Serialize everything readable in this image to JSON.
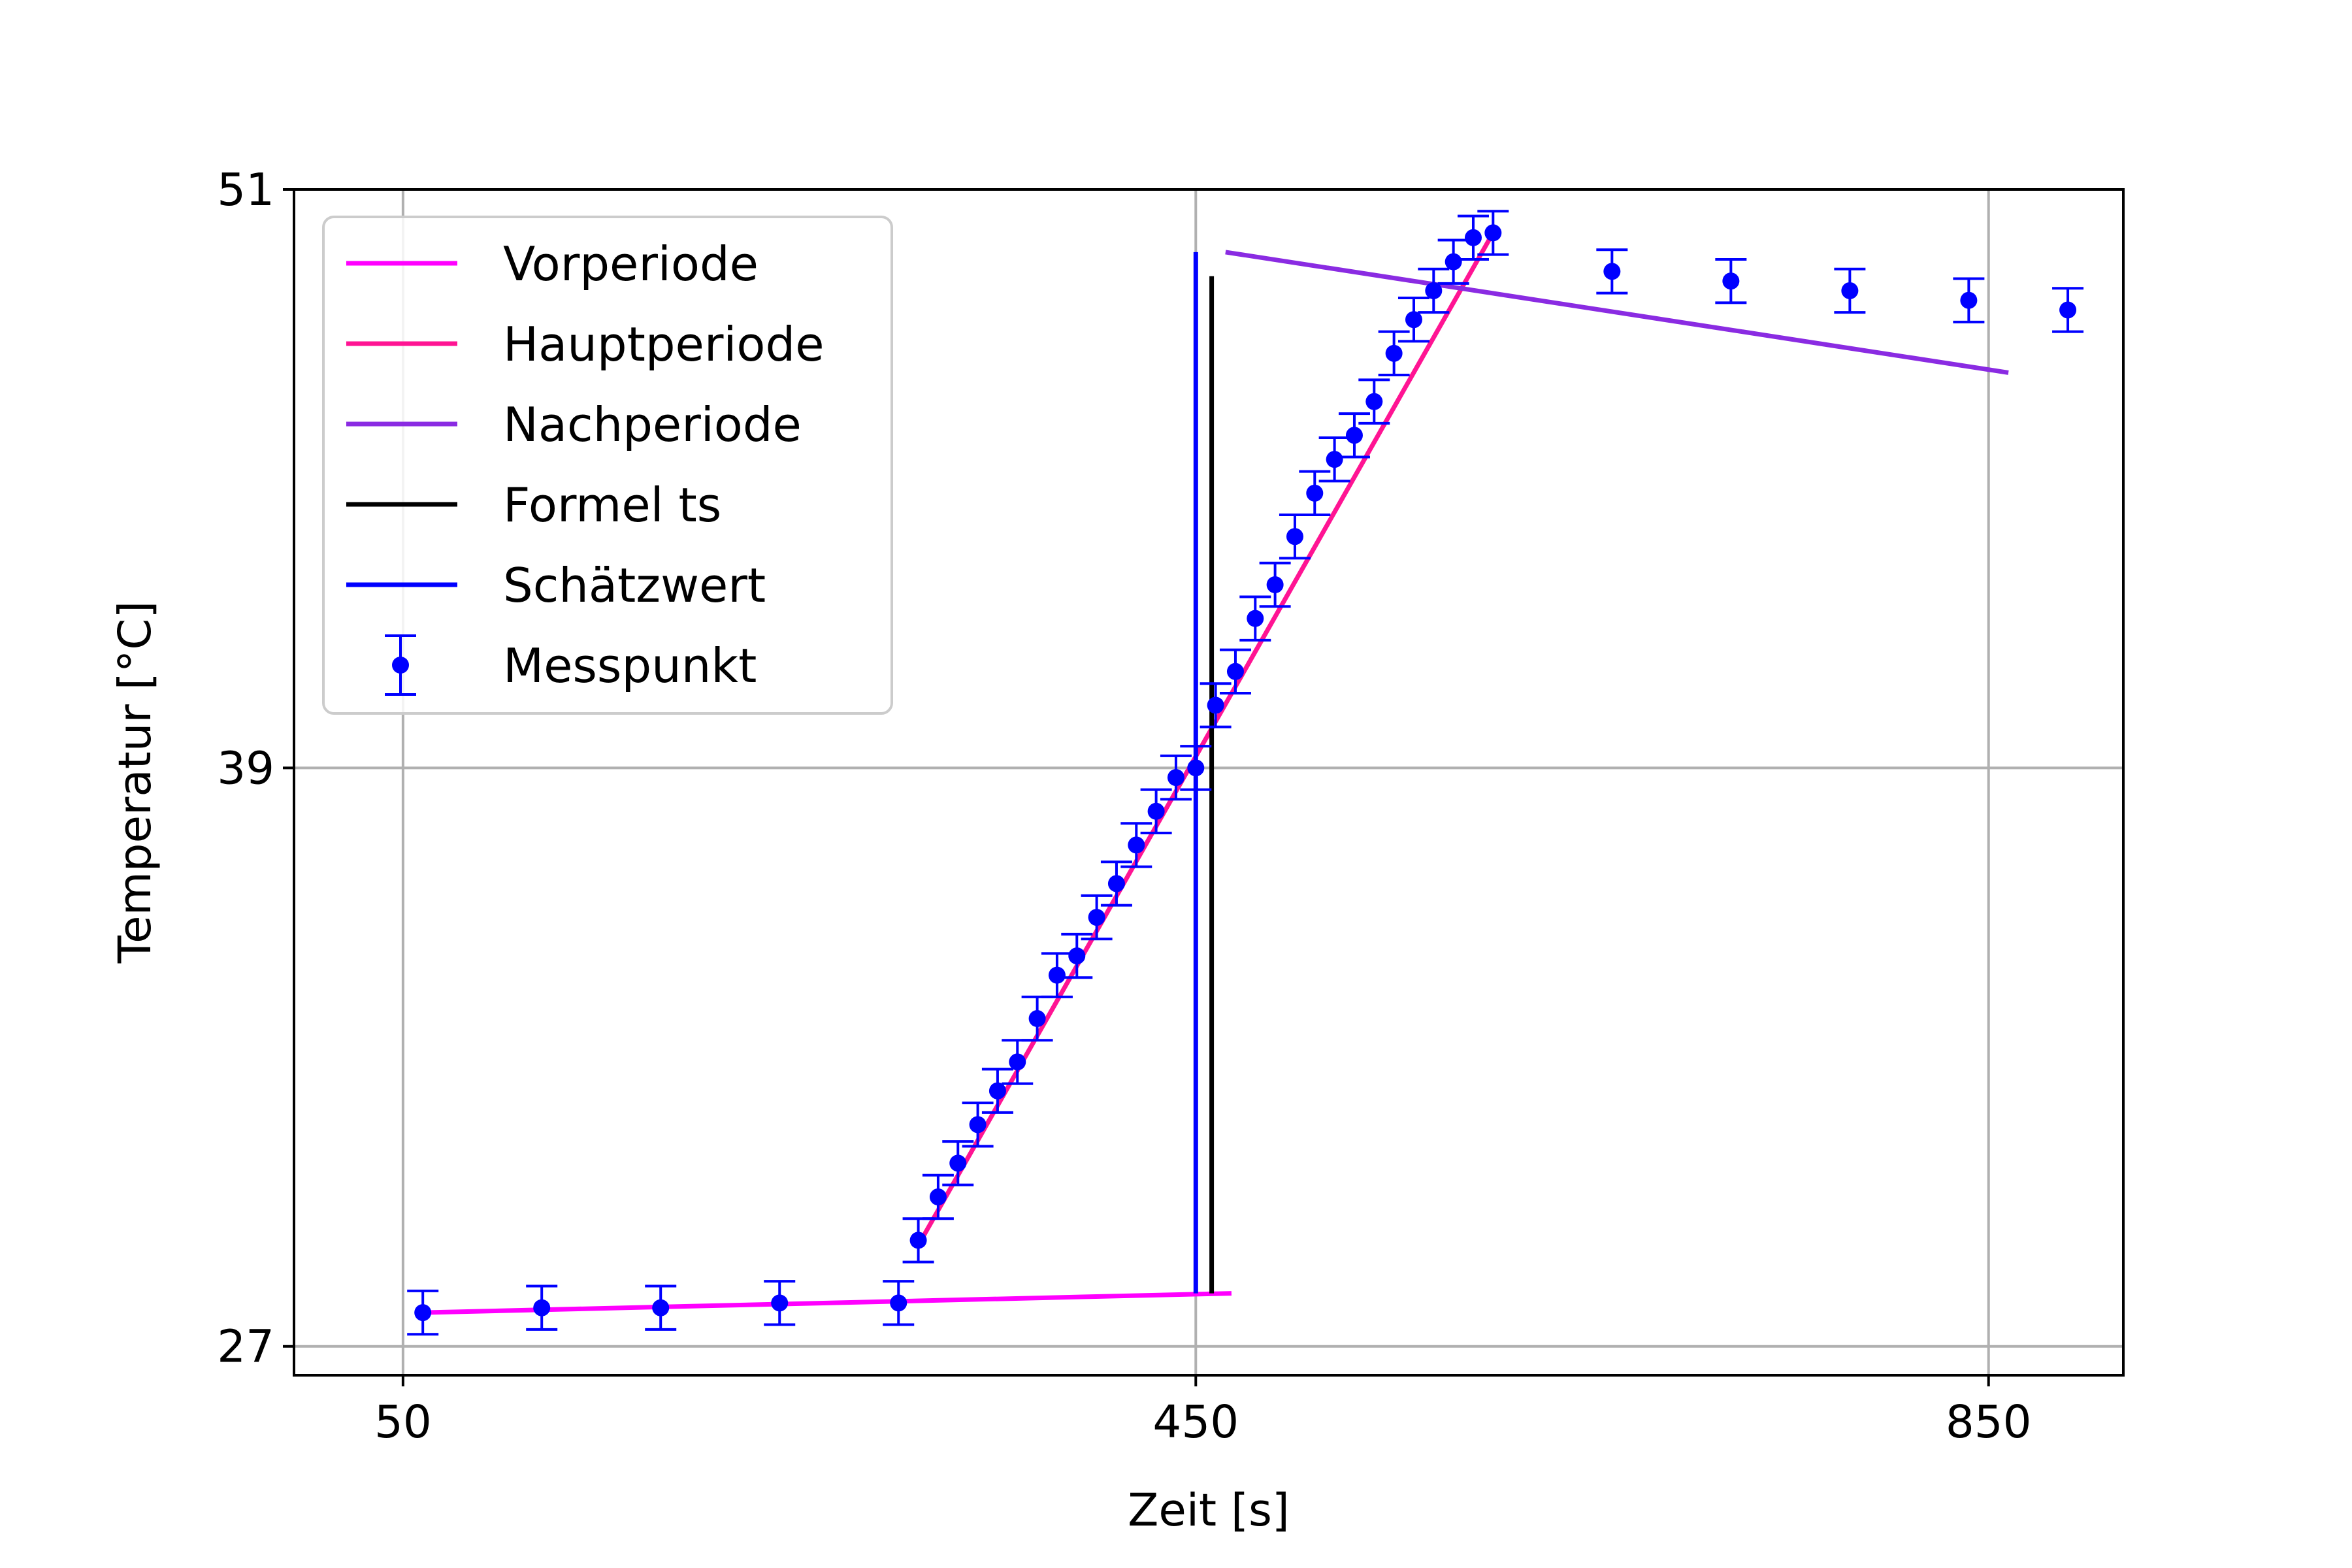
{
  "chart_data": {
    "type": "line",
    "xlabel": "Zeit [s]",
    "ylabel": "Temperatur [°C]",
    "xlim": [
      -5,
      918
    ],
    "ylim": [
      26.4,
      51
    ],
    "xticks": [
      50,
      450,
      850
    ],
    "yticks": [
      27,
      39,
      51
    ],
    "grid": true,
    "legend_position": "top-left",
    "colors": {
      "vorperiode": "#ff00ff",
      "hauptperiode": "#ff1493",
      "nachperiode": "#8a2be2",
      "formel": "#000000",
      "schaetzwert": "#0000ff",
      "messpunkt": "#0000ff",
      "grid": "#b0b0b0"
    },
    "legend": [
      {
        "label": "Vorperiode",
        "kind": "line",
        "color": "#ff00ff"
      },
      {
        "label": "Hauptperiode",
        "kind": "line",
        "color": "#ff1493"
      },
      {
        "label": "Nachperiode",
        "kind": "line",
        "color": "#8a2be2"
      },
      {
        "label": "Formel ts",
        "kind": "line",
        "color": "#000000"
      },
      {
        "label": "Schätzwert",
        "kind": "line",
        "color": "#0000ff"
      },
      {
        "label": "Messpunkt",
        "kind": "errorbar",
        "color": "#0000ff"
      }
    ],
    "lines": [
      {
        "name": "Vorperiode",
        "color": "#ff00ff",
        "points": [
          [
            60,
            27.7
          ],
          [
            468,
            28.1
          ]
        ]
      },
      {
        "name": "Hauptperiode",
        "color": "#ff1493",
        "points": [
          [
            310,
            29.1
          ],
          [
            600,
            50.1
          ]
        ]
      },
      {
        "name": "Nachperiode",
        "color": "#8a2be2",
        "points": [
          [
            465,
            49.7
          ],
          [
            860,
            47.2
          ]
        ]
      },
      {
        "name": "Formel ts",
        "color": "#000000",
        "points": [
          [
            458,
            28.1
          ],
          [
            458,
            49.2
          ]
        ]
      },
      {
        "name": "Schätzwert",
        "color": "#0000ff",
        "points": [
          [
            450,
            28.1
          ],
          [
            450,
            49.7
          ]
        ]
      }
    ],
    "error": 0.45,
    "points": [
      [
        60,
        27.7
      ],
      [
        120,
        27.8
      ],
      [
        180,
        27.8
      ],
      [
        240,
        27.9
      ],
      [
        300,
        27.9
      ],
      [
        310,
        29.2
      ],
      [
        320,
        30.1
      ],
      [
        330,
        30.8
      ],
      [
        340,
        31.6
      ],
      [
        350,
        32.3
      ],
      [
        360,
        32.9
      ],
      [
        370,
        33.8
      ],
      [
        380,
        34.7
      ],
      [
        390,
        35.1
      ],
      [
        400,
        35.9
      ],
      [
        410,
        36.6
      ],
      [
        420,
        37.4
      ],
      [
        430,
        38.1
      ],
      [
        440,
        38.8
      ],
      [
        450,
        39.0
      ],
      [
        460,
        40.3
      ],
      [
        470,
        41.0
      ],
      [
        480,
        42.1
      ],
      [
        490,
        42.8
      ],
      [
        500,
        43.8
      ],
      [
        510,
        44.7
      ],
      [
        520,
        45.4
      ],
      [
        530,
        45.9
      ],
      [
        540,
        46.6
      ],
      [
        550,
        47.6
      ],
      [
        560,
        48.3
      ],
      [
        570,
        48.9
      ],
      [
        580,
        49.5
      ],
      [
        590,
        50.0
      ],
      [
        600,
        50.1
      ],
      [
        660,
        49.3
      ],
      [
        720,
        49.1
      ],
      [
        780,
        48.9
      ],
      [
        840,
        48.7
      ],
      [
        890,
        48.5
      ]
    ]
  }
}
